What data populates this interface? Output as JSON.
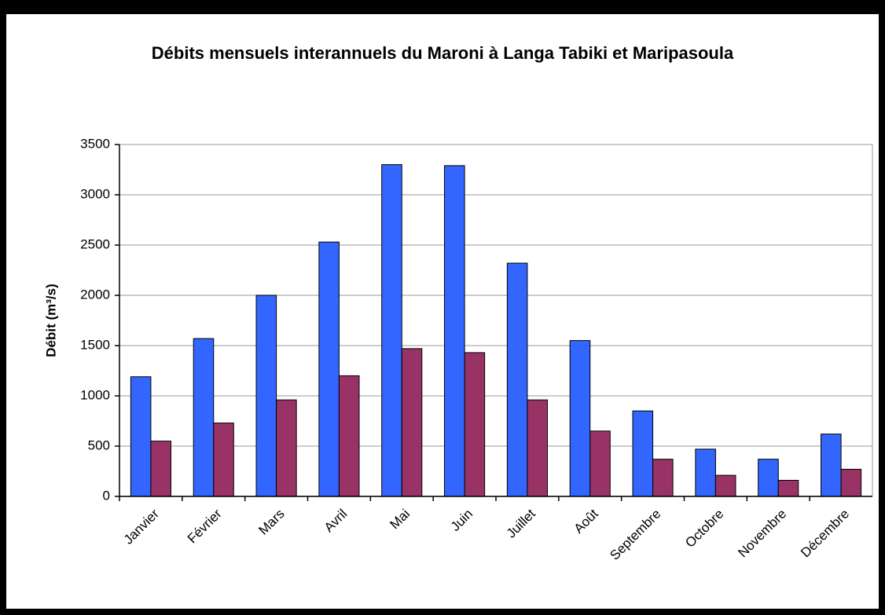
{
  "chart_data": {
    "type": "bar",
    "title": "Débits mensuels interannuels du Maroni à Langa Tabiki et Maripasoula",
    "y_label": "Débit (m³/s)",
    "categories": [
      "Janvier",
      "Février",
      "Mars",
      "Avril",
      "Mai",
      "Juin",
      "Juillet",
      "Août",
      "Septembre",
      "Octobre",
      "Novembre",
      "Décembre"
    ],
    "series": [
      {
        "color": "#3366ff",
        "values": [
          1190,
          1570,
          2000,
          2530,
          3300,
          3290,
          2320,
          1550,
          850,
          470,
          370,
          620
        ]
      },
      {
        "color": "#993366",
        "values": [
          550,
          730,
          960,
          1200,
          1470,
          1430,
          960,
          650,
          370,
          210,
          160,
          270
        ]
      }
    ],
    "ylim": [
      0,
      3500
    ],
    "yticks": [
      0,
      500,
      1000,
      1500,
      2000,
      2500,
      3000,
      3500
    ],
    "grid": true
  }
}
